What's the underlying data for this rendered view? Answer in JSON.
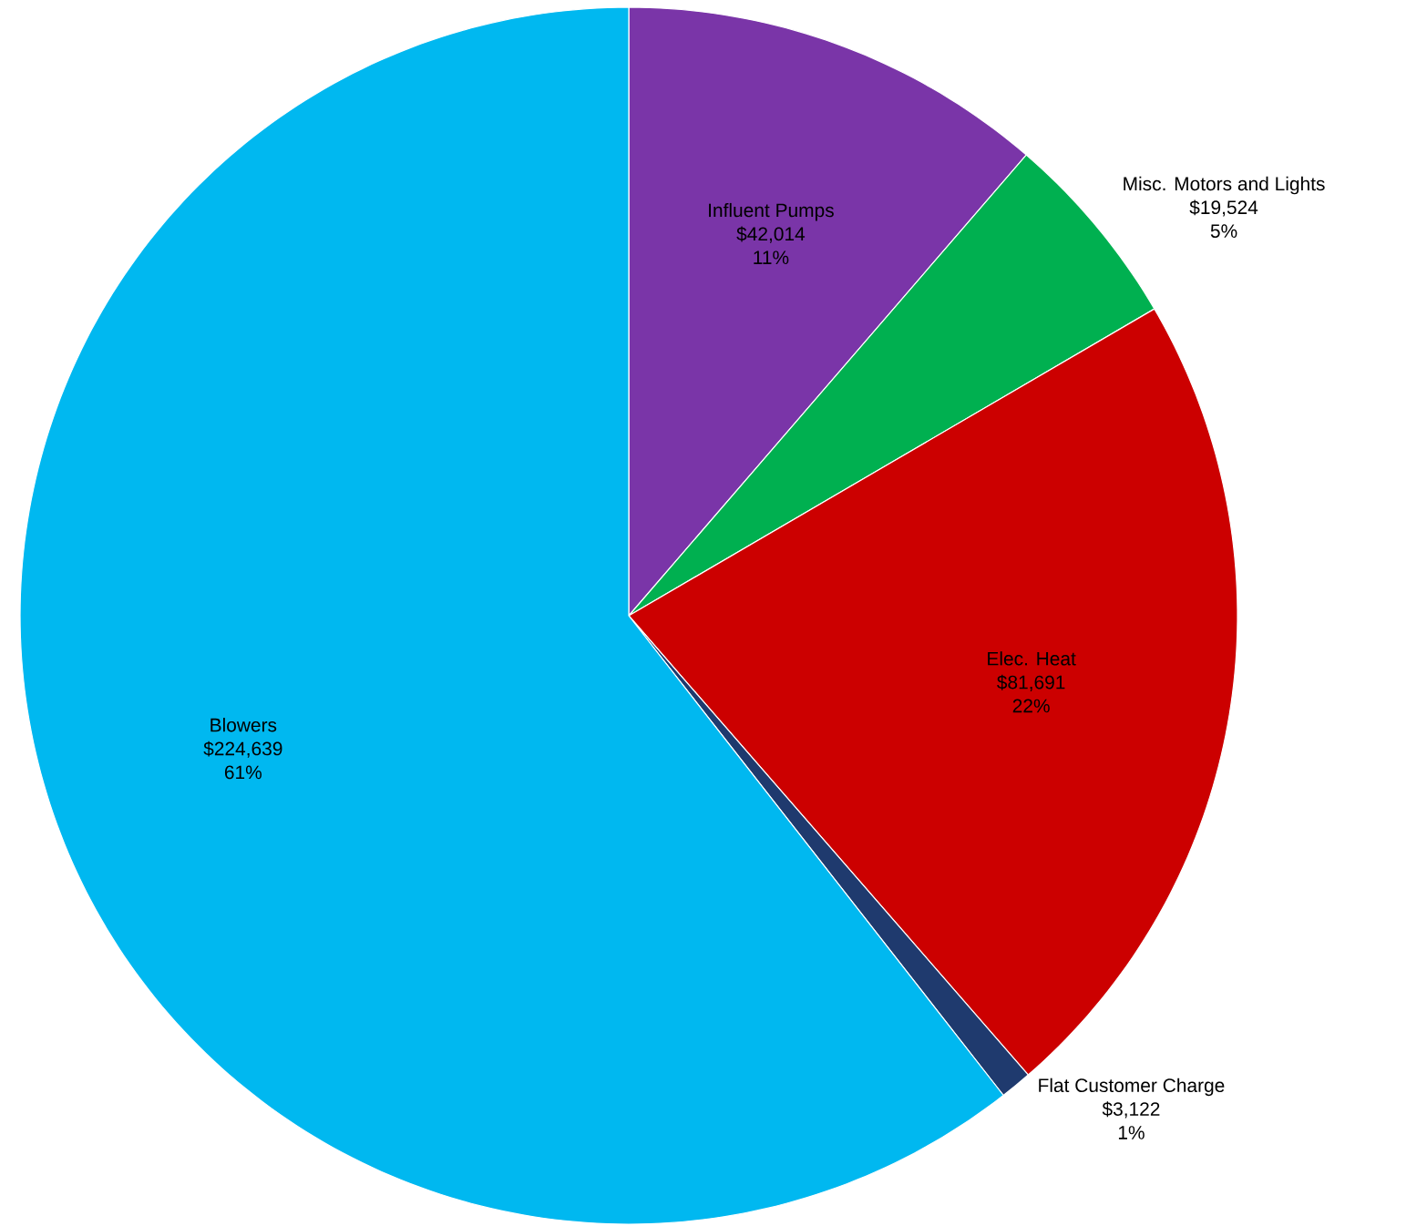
{
  "chart_data": {
    "type": "pie",
    "categories": [
      "Influent Pumps",
      "Misc. Motors and Lights",
      "Elec. Heat",
      "Flat Customer Charge",
      "Blowers"
    ],
    "values": [
      42014,
      19524,
      81691,
      3122,
      224639
    ],
    "colors": [
      "#7a35a8",
      "#00b050",
      "#cc0000",
      "#1f3a6e",
      "#00b8f0"
    ],
    "value_labels": [
      "$42,014",
      "$19,524",
      "$81,691",
      "$3,122",
      "$224,639"
    ],
    "annotations": [
      "11%",
      "5%",
      "22%",
      "1%",
      "61%"
    ]
  }
}
